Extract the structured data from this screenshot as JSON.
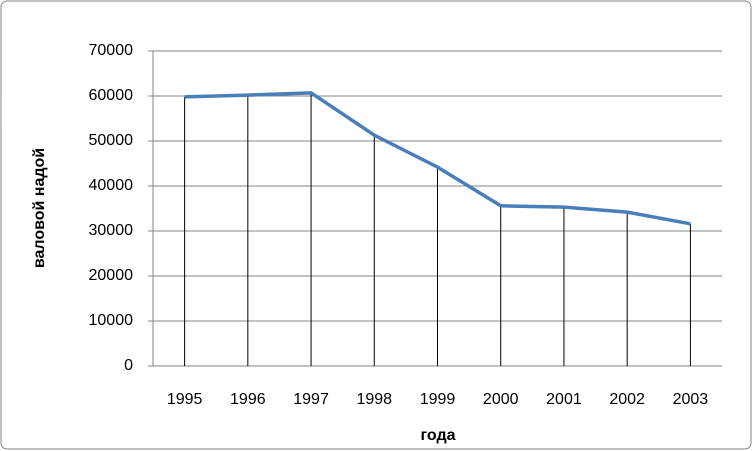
{
  "chart_data": {
    "type": "line",
    "x_label": "года",
    "y_label": "валовой надой",
    "categories": [
      "1995",
      "1996",
      "1997",
      "1998",
      "1999",
      "2000",
      "2001",
      "2002",
      "2003"
    ],
    "series": [
      {
        "color": "#4a7ebb",
        "values": [
          59800,
          60200,
          60700,
          51300,
          44200,
          35600,
          35300,
          34200,
          31600
        ]
      }
    ],
    "ylim": [
      0,
      70000
    ],
    "yticks": [
      0,
      10000,
      20000,
      30000,
      40000,
      50000,
      60000,
      70000
    ],
    "grid": true,
    "drop_lines": true
  }
}
